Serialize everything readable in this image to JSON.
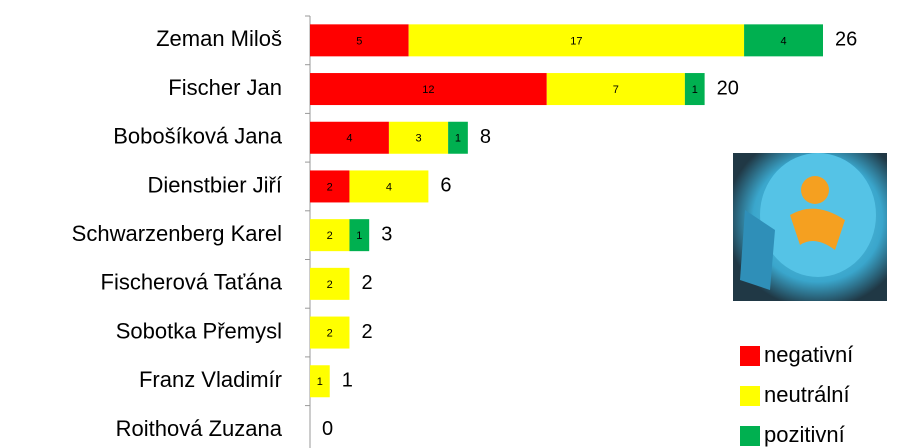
{
  "chart_data": {
    "type": "stacked-bar-horizontal",
    "categories": [
      "Zeman Miloš",
      "Fischer Jan",
      "Bobošíková Jana",
      "Dienstbier Jiří",
      "Schwarzenberg Karel",
      "Fischerová Taťána",
      "Sobotka Přemysl",
      "Franz Vladimír",
      "Roithová Zuzana"
    ],
    "series": [
      {
        "name": "negativní",
        "color": "#ff0000",
        "values": [
          5,
          12,
          4,
          2,
          0,
          0,
          0,
          0,
          0
        ]
      },
      {
        "name": "neutrální",
        "color": "#ffff00",
        "values": [
          17,
          7,
          3,
          4,
          2,
          2,
          2,
          1,
          0
        ]
      },
      {
        "name": "pozitivní",
        "color": "#00b050",
        "values": [
          4,
          1,
          1,
          0,
          1,
          0,
          0,
          0,
          0
        ]
      }
    ],
    "totals": [
      26,
      20,
      8,
      6,
      3,
      2,
      2,
      1,
      0
    ],
    "xlim": [
      0,
      26
    ],
    "legend": "bottom-right"
  }
}
